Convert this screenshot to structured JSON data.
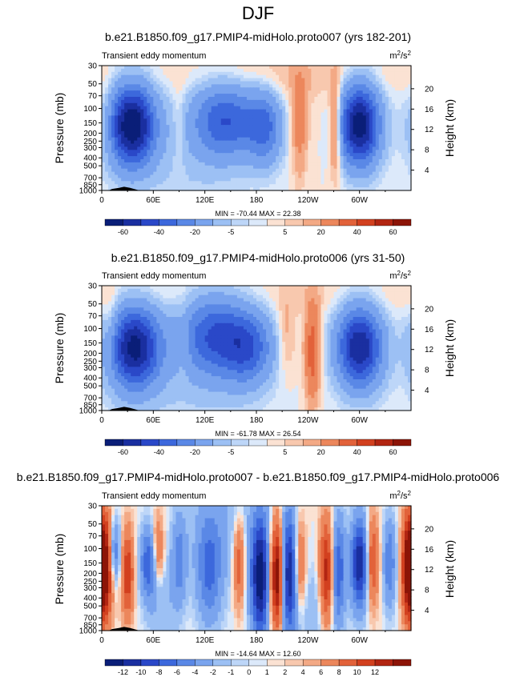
{
  "page_title": "DJF",
  "colormap": [
    "#0a1e78",
    "#1a2fa0",
    "#2a48c8",
    "#3c68dc",
    "#5a88e6",
    "#7aa4ee",
    "#9cc0f4",
    "#bdd6f8",
    "#dce9fa",
    "#fbe2d3",
    "#f8c8ae",
    "#f3a985",
    "#ec875c",
    "#e2623a",
    "#d2401f",
    "#b22512",
    "#8c1407"
  ],
  "chart_data": [
    {
      "type": "contour",
      "title": "b.e21.B1850.f09_g17.PMIP4-midHolo.proto007 (yrs 182-201)",
      "left_label": "Transient eddy momentum",
      "units": "m²/s²",
      "units_base": "m",
      "units_sup": "2",
      "units_mid": "/s",
      "units_sup2": "2",
      "ylabel": "Pressure (mb)",
      "ylabel_right": "Height (km)",
      "y_ticks": [
        "30",
        "50",
        "70",
        "100",
        "150",
        "200",
        "250",
        "300",
        "400",
        "500",
        "700",
        "850",
        "1000"
      ],
      "y_ticks_right": [
        "20",
        "16",
        "12",
        "8",
        "4"
      ],
      "x_ticks": [
        "0",
        "60E",
        "120E",
        "180",
        "120W",
        "60W"
      ],
      "stats": "MIN = -70.44  MAX =  22.38",
      "min": -70.44,
      "max": 22.38,
      "colorbar_labels": [
        "-60",
        "-40",
        "-20",
        "-5",
        "5",
        "20",
        "40",
        "60"
      ],
      "blobs": [
        {
          "lon": 35,
          "lev": 160,
          "w": 18,
          "h": 0.22,
          "amp": -70
        },
        {
          "lon": 145,
          "lev": 140,
          "w": 26,
          "h": 0.2,
          "amp": -38
        },
        {
          "lon": 190,
          "lev": 170,
          "w": 14,
          "h": 0.2,
          "amp": -30
        },
        {
          "lon": 300,
          "lev": 160,
          "w": 16,
          "h": 0.22,
          "amp": -68
        },
        {
          "lon": 100,
          "lev": 300,
          "w": 55,
          "h": 0.35,
          "amp": -6
        },
        {
          "lon": 230,
          "lev": 150,
          "w": 6,
          "h": 0.3,
          "amp": 14
        },
        {
          "lon": 272,
          "lev": 170,
          "w": 5,
          "h": 0.25,
          "amp": 22
        },
        {
          "lon": 5,
          "lev": 130,
          "w": 6,
          "h": 0.2,
          "amp": 6
        },
        {
          "lon": 90,
          "lev": 160,
          "w": 6,
          "h": 0.25,
          "amp": 6
        },
        {
          "lon": 200,
          "lev": 50,
          "w": 50,
          "h": 0.4,
          "amp": 3
        }
      ]
    },
    {
      "type": "contour",
      "title": "b.e21.B1850.f09_g17.PMIP4-midHolo.proto006 (yrs 31-50)",
      "left_label": "Transient eddy momentum",
      "units": "m²/s²",
      "units_base": "m",
      "units_sup": "2",
      "units_mid": "/s",
      "units_sup2": "2",
      "ylabel": "Pressure (mb)",
      "ylabel_right": "Height (km)",
      "y_ticks": [
        "30",
        "50",
        "70",
        "100",
        "150",
        "200",
        "250",
        "300",
        "400",
        "500",
        "700",
        "850",
        "1000"
      ],
      "y_ticks_right": [
        "20",
        "16",
        "12",
        "8",
        "4"
      ],
      "x_ticks": [
        "0",
        "60E",
        "120E",
        "180",
        "120W",
        "60W"
      ],
      "stats": "MIN = -61.78  MAX =  26.54",
      "min": -61.78,
      "max": 26.54,
      "colorbar_labels": [
        "-60",
        "-40",
        "-20",
        "-5",
        "5",
        "20",
        "40",
        "60"
      ],
      "blobs": [
        {
          "lon": 38,
          "lev": 170,
          "w": 20,
          "h": 0.22,
          "amp": -62
        },
        {
          "lon": 130,
          "lev": 120,
          "w": 26,
          "h": 0.22,
          "amp": -36
        },
        {
          "lon": 170,
          "lev": 170,
          "w": 20,
          "h": 0.2,
          "amp": -34
        },
        {
          "lon": 300,
          "lev": 170,
          "w": 18,
          "h": 0.22,
          "amp": -60
        },
        {
          "lon": 100,
          "lev": 300,
          "w": 60,
          "h": 0.35,
          "amp": -6
        },
        {
          "lon": 245,
          "lev": 190,
          "w": 6,
          "h": 0.28,
          "amp": 26
        },
        {
          "lon": 215,
          "lev": 130,
          "w": 8,
          "h": 0.22,
          "amp": 8
        },
        {
          "lon": 10,
          "lev": 110,
          "w": 6,
          "h": 0.2,
          "amp": 8
        },
        {
          "lon": 95,
          "lev": 150,
          "w": 6,
          "h": 0.2,
          "amp": 6
        }
      ]
    },
    {
      "type": "contour",
      "title": "b.e21.B1850.f09_g17.PMIP4-midHolo.proto007 - b.e21.B1850.f09_g17.PMIP4-midHolo.proto006",
      "left_label": "Transient eddy momentum",
      "units": "m²/s²",
      "units_base": "m",
      "units_sup": "2",
      "units_mid": "/s",
      "units_sup2": "2",
      "ylabel": "Pressure (mb)",
      "ylabel_right": "Height (km)",
      "y_ticks": [
        "30",
        "50",
        "70",
        "100",
        "150",
        "200",
        "250",
        "300",
        "400",
        "500",
        "700",
        "850",
        "1000"
      ],
      "y_ticks_right": [
        "20",
        "16",
        "12",
        "8",
        "4"
      ],
      "x_ticks": [
        "0",
        "60E",
        "120E",
        "180",
        "120W",
        "60W"
      ],
      "stats": "MIN = -14.64  MAX =  12.60",
      "min": -14.64,
      "max": 12.6,
      "colorbar_labels": [
        "-12",
        "-10",
        "-8",
        "-6",
        "-4",
        "-2",
        "-1",
        "0",
        "1",
        "2",
        "4",
        "6",
        "8",
        "10",
        "12"
      ],
      "blobs": [
        {
          "lon": 4,
          "lev": 170,
          "w": 6,
          "h": 0.3,
          "amp": 12
        },
        {
          "lon": 15,
          "lev": 110,
          "w": 5,
          "h": 0.18,
          "amp": -6
        },
        {
          "lon": 30,
          "lev": 200,
          "w": 5,
          "h": 0.25,
          "amp": 8
        },
        {
          "lon": 55,
          "lev": 150,
          "w": 7,
          "h": 0.2,
          "amp": -8
        },
        {
          "lon": 65,
          "lev": 110,
          "w": 5,
          "h": 0.2,
          "amp": 6
        },
        {
          "lon": 90,
          "lev": 140,
          "w": 6,
          "h": 0.25,
          "amp": -5
        },
        {
          "lon": 125,
          "lev": 180,
          "w": 10,
          "h": 0.3,
          "amp": -6
        },
        {
          "lon": 160,
          "lev": 150,
          "w": 5,
          "h": 0.25,
          "amp": 6
        },
        {
          "lon": 185,
          "lev": 220,
          "w": 8,
          "h": 0.35,
          "amp": -14
        },
        {
          "lon": 197,
          "lev": 220,
          "w": 6,
          "h": 0.3,
          "amp": 4
        },
        {
          "lon": 205,
          "lev": 210,
          "w": 5,
          "h": 0.3,
          "amp": 12
        },
        {
          "lon": 218,
          "lev": 200,
          "w": 7,
          "h": 0.35,
          "amp": -12
        },
        {
          "lon": 230,
          "lev": 160,
          "w": 5,
          "h": 0.25,
          "amp": 6
        },
        {
          "lon": 262,
          "lev": 200,
          "w": 6,
          "h": 0.3,
          "amp": 10
        },
        {
          "lon": 275,
          "lev": 180,
          "w": 6,
          "h": 0.3,
          "amp": -8
        },
        {
          "lon": 300,
          "lev": 150,
          "w": 7,
          "h": 0.25,
          "amp": -12
        },
        {
          "lon": 315,
          "lev": 140,
          "w": 5,
          "h": 0.25,
          "amp": 7
        },
        {
          "lon": 335,
          "lev": 150,
          "w": 5,
          "h": 0.25,
          "amp": -6
        },
        {
          "lon": 356,
          "lev": 170,
          "w": 5,
          "h": 0.3,
          "amp": 10
        },
        {
          "lon": 70,
          "lev": 500,
          "w": 12,
          "h": 0.3,
          "amp": -2
        },
        {
          "lon": 250,
          "lev": 600,
          "w": 15,
          "h": 0.3,
          "amp": -2
        },
        {
          "lon": 140,
          "lev": 50,
          "w": 30,
          "h": 0.4,
          "amp": -2
        }
      ]
    }
  ]
}
